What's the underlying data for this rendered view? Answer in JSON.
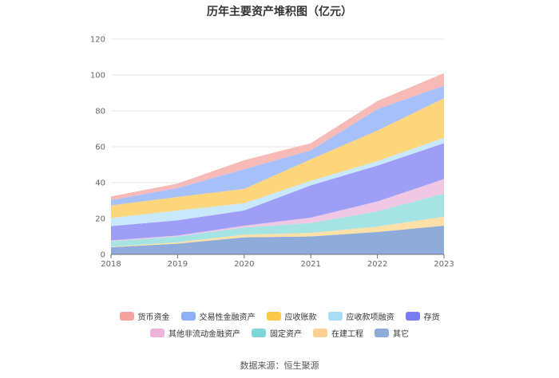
{
  "chart_data": {
    "type": "area",
    "stacked": true,
    "title": "历年主要资产堆积图（亿元）",
    "xlabel": "",
    "ylabel": "",
    "x": [
      "2018",
      "2019",
      "2020",
      "2021",
      "2022",
      "2023"
    ],
    "ylim": [
      0,
      120
    ],
    "yticks": [
      0,
      20,
      40,
      60,
      80,
      100,
      120
    ],
    "grid": true,
    "legend_position": "bottom",
    "series": [
      {
        "name": "其它",
        "color": "#8eabd9",
        "values": [
          4,
          6,
          9.5,
          10,
          12.5,
          16
        ]
      },
      {
        "name": "在建工程",
        "color": "#fde0a8",
        "values": [
          0.3,
          0.8,
          1.5,
          2,
          3,
          5
        ]
      },
      {
        "name": "固定资产",
        "color": "#a6e3e3",
        "values": [
          3,
          3.2,
          4,
          5.5,
          8.5,
          13
        ]
      },
      {
        "name": "其他非流动金融资产",
        "color": "#f0c8e4",
        "values": [
          0.5,
          0.5,
          1,
          3,
          5.5,
          8
        ]
      },
      {
        "name": "存货",
        "color": "#9e9ef7",
        "values": [
          8,
          8.5,
          8.5,
          18,
          20,
          20
        ]
      },
      {
        "name": "应收款项融资",
        "color": "#c8e9fb",
        "values": [
          4.5,
          5.5,
          4,
          2.5,
          2.5,
          3
        ]
      },
      {
        "name": "应收账款",
        "color": "#fdd57a",
        "values": [
          7,
          7.5,
          8,
          12,
          17,
          22
        ]
      },
      {
        "name": "交易性金融资产",
        "color": "#a8c0fa",
        "values": [
          3,
          5,
          11,
          5,
          12,
          7
        ]
      },
      {
        "name": "货币资金",
        "color": "#f7bab6",
        "values": [
          2,
          2.5,
          5,
          4,
          4.5,
          7
        ]
      }
    ]
  },
  "legend": {
    "row1": [
      {
        "label": "货币资金",
        "color": "#f5a49d"
      },
      {
        "label": "交易性金融资产",
        "color": "#8faff8"
      },
      {
        "label": "应收账款",
        "color": "#fdc94a"
      },
      {
        "label": "应收款项融资",
        "color": "#a9ddf7"
      },
      {
        "label": "存货",
        "color": "#7b7bf2"
      }
    ],
    "row2": [
      {
        "label": "其他非流动金融资产",
        "color": "#ebb4d8"
      },
      {
        "label": "固定资产",
        "color": "#7fd6d6"
      },
      {
        "label": "在建工程",
        "color": "#fcd08e"
      },
      {
        "label": "其它",
        "color": "#8eabd9"
      }
    ]
  },
  "source": "数据来源：恒生聚源"
}
